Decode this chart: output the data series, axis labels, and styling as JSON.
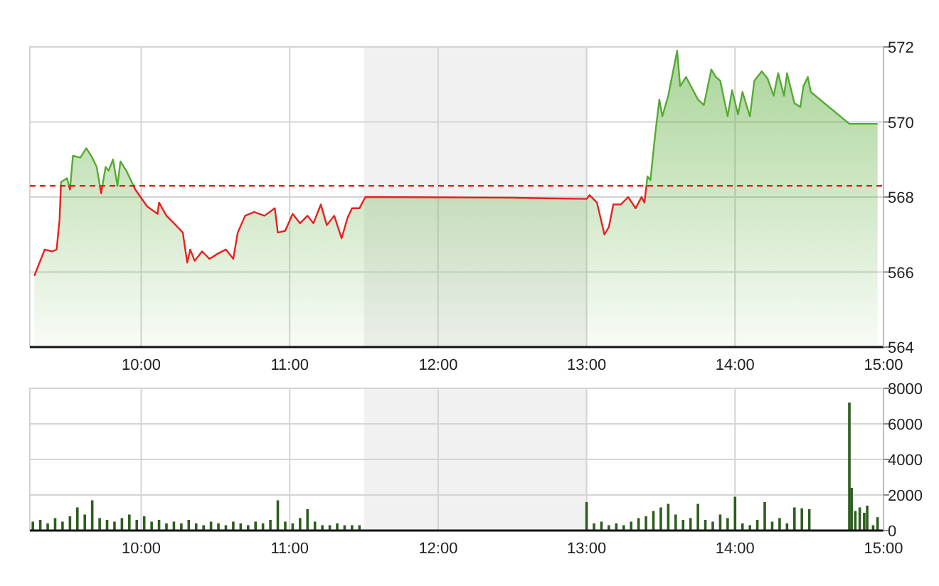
{
  "chart_data": [
    {
      "type": "area",
      "color": "#55aa33",
      "x": [
        9.28,
        9.3,
        9.35,
        9.4,
        9.43,
        9.45,
        9.46,
        9.5,
        9.52,
        9.54,
        9.59,
        9.63,
        9.67,
        9.7,
        9.73,
        9.76,
        9.78,
        9.81,
        9.84,
        9.86,
        9.9,
        9.96,
        10.04,
        10.11,
        10.12,
        10.17,
        10.22,
        10.28,
        10.31,
        10.33,
        10.36,
        10.41,
        10.46,
        10.52,
        10.57,
        10.62,
        10.65,
        10.7,
        10.76,
        10.83,
        10.9,
        10.92,
        10.97,
        11.02,
        11.07,
        11.12,
        11.16,
        11.21,
        11.25,
        11.3,
        11.35,
        11.39,
        11.42,
        11.47,
        11.51,
        12.5,
        13.0,
        13.02,
        13.07,
        13.12,
        13.15,
        13.18,
        13.23,
        13.28,
        13.33,
        13.37,
        13.39,
        13.41,
        13.43,
        13.46,
        13.49,
        13.51,
        13.55,
        13.58,
        13.61,
        13.63,
        13.67,
        13.71,
        13.75,
        13.79,
        13.84,
        13.87,
        13.9,
        13.95,
        13.98,
        14.02,
        14.05,
        14.1,
        14.13,
        14.18,
        14.22,
        14.26,
        14.29,
        14.33,
        14.35,
        14.4,
        14.44,
        14.46,
        14.49,
        14.51,
        14.77,
        14.96
      ],
      "values": [
        565.9,
        566.1,
        566.6,
        566.55,
        566.6,
        567.4,
        568.4,
        568.5,
        568.2,
        569.1,
        569.05,
        569.3,
        569.05,
        568.8,
        568.1,
        568.8,
        568.7,
        569.0,
        568.3,
        568.95,
        568.7,
        568.2,
        567.75,
        567.55,
        567.85,
        567.5,
        567.3,
        567.05,
        566.25,
        566.6,
        566.3,
        566.55,
        566.35,
        566.5,
        566.6,
        566.35,
        567.05,
        567.5,
        567.6,
        567.5,
        567.7,
        567.05,
        567.1,
        567.55,
        567.3,
        567.5,
        567.3,
        567.8,
        567.25,
        567.5,
        566.9,
        567.45,
        567.7,
        567.7,
        568.0,
        567.98,
        567.95,
        568.05,
        567.85,
        567.0,
        567.2,
        567.8,
        567.8,
        568.0,
        567.7,
        568.0,
        567.85,
        568.55,
        568.45,
        569.6,
        570.6,
        570.15,
        570.7,
        571.3,
        571.9,
        570.95,
        571.2,
        570.9,
        570.6,
        570.45,
        571.4,
        571.2,
        571.1,
        570.15,
        570.85,
        570.2,
        570.8,
        570.15,
        571.1,
        571.35,
        571.15,
        570.7,
        571.3,
        570.7,
        571.3,
        570.5,
        570.4,
        570.95,
        571.2,
        570.8,
        569.95,
        569.95
      ],
      "xlim": [
        9.25,
        15
      ],
      "xticks": [
        {
          "value": 10,
          "label": "10:00"
        },
        {
          "value": 11,
          "label": "11:00"
        },
        {
          "value": 12,
          "label": "12:00"
        },
        {
          "value": 13,
          "label": "13:00"
        },
        {
          "value": 14,
          "label": "14:00"
        },
        {
          "value": 15,
          "label": "15:00"
        }
      ],
      "ylim": [
        564,
        572
      ],
      "yticks": [
        564,
        566,
        568,
        570,
        572
      ],
      "grid": true,
      "ref_lines": [
        {
          "axis": "y",
          "value": 568.3,
          "color": "#e82020",
          "line_style": "dashed"
        }
      ],
      "bands": [
        {
          "axis": "x",
          "from": 11.5,
          "to": 13,
          "color": "#f1f1f1"
        }
      ]
    },
    {
      "type": "bar",
      "color": "#2e5e1e",
      "x": [
        9.27,
        9.32,
        9.37,
        9.42,
        9.47,
        9.52,
        9.57,
        9.62,
        9.67,
        9.72,
        9.77,
        9.82,
        9.87,
        9.92,
        9.97,
        10.02,
        10.07,
        10.12,
        10.17,
        10.22,
        10.27,
        10.32,
        10.37,
        10.42,
        10.47,
        10.52,
        10.57,
        10.62,
        10.67,
        10.72,
        10.77,
        10.82,
        10.87,
        10.92,
        10.97,
        11.02,
        11.07,
        11.12,
        11.17,
        11.22,
        11.27,
        11.32,
        11.37,
        11.42,
        11.47,
        13.0,
        13.05,
        13.1,
        13.15,
        13.2,
        13.25,
        13.3,
        13.35,
        13.4,
        13.45,
        13.5,
        13.55,
        13.6,
        13.65,
        13.7,
        13.75,
        13.8,
        13.85,
        13.9,
        13.95,
        14.0,
        14.05,
        14.1,
        14.15,
        14.2,
        14.25,
        14.3,
        14.35,
        14.4,
        14.45,
        14.5,
        14.77,
        14.785,
        14.81,
        14.84,
        14.87,
        14.89,
        14.93,
        14.96
      ],
      "values": [
        500,
        600,
        400,
        700,
        500,
        800,
        1300,
        900,
        1700,
        700,
        600,
        500,
        700,
        900,
        600,
        800,
        500,
        600,
        400,
        500,
        400,
        600,
        400,
        300,
        500,
        400,
        300,
        500,
        400,
        300,
        500,
        400,
        600,
        1700,
        500,
        400,
        700,
        1200,
        500,
        300,
        300,
        400,
        300,
        300,
        300,
        1600,
        400,
        500,
        300,
        400,
        300,
        500,
        700,
        800,
        1100,
        1300,
        1500,
        900,
        600,
        700,
        1500,
        600,
        500,
        900,
        700,
        1900,
        400,
        300,
        600,
        1600,
        500,
        700,
        400,
        1300,
        1250,
        1200,
        7200,
        2400,
        1100,
        1300,
        1000,
        1400,
        300,
        750
      ],
      "xlim": [
        9.25,
        15
      ],
      "xticks": [
        {
          "value": 10,
          "label": "10:00"
        },
        {
          "value": 11,
          "label": "11:00"
        },
        {
          "value": 12,
          "label": "12:00"
        },
        {
          "value": 13,
          "label": "13:00"
        },
        {
          "value": 14,
          "label": "14:00"
        },
        {
          "value": 15,
          "label": "15:00"
        }
      ],
      "ylim": [
        0,
        8000
      ],
      "yticks": [
        0,
        2000,
        4000,
        6000,
        8000
      ],
      "grid": true,
      "bands": [
        {
          "axis": "x",
          "from": 11.5,
          "to": 13,
          "color": "#f1f1f1"
        }
      ]
    }
  ]
}
